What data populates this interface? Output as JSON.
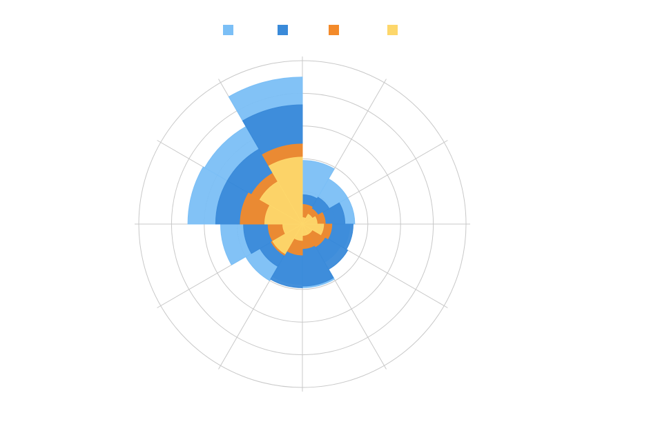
{
  "chart_data": {
    "type": "polar-bar",
    "stacked": true,
    "sectors": 12,
    "radial_max": 5,
    "radial_ticks": [
      1,
      2,
      3,
      4,
      5
    ],
    "grid": true,
    "legend_position": "top",
    "series": [
      {
        "name": "",
        "color": "#7bbff6",
        "values": [
          1.95,
          1.6,
          1.6,
          1.45,
          1.35,
          1.95,
          1.85,
          2.0,
          2.5,
          3.5,
          3.45,
          4.5
        ]
      },
      {
        "name": "",
        "color": "#3a8ad9",
        "values": [
          0.9,
          0.95,
          1.3,
          1.55,
          1.6,
          1.9,
          1.95,
          1.5,
          1.8,
          2.65,
          2.65,
          3.65
        ]
      },
      {
        "name": "",
        "color": "#f38a2a",
        "values": [
          0.6,
          0.55,
          0.7,
          0.9,
          0.8,
          0.75,
          0.95,
          1.1,
          1.05,
          1.9,
          1.8,
          2.45
        ]
      },
      {
        "name": "",
        "color": "#fdd76b",
        "values": [
          0.2,
          0.35,
          0.45,
          0.65,
          0.35,
          0.35,
          0.5,
          1.05,
          0.6,
          1.15,
          1.5,
          2.05
        ]
      }
    ]
  }
}
